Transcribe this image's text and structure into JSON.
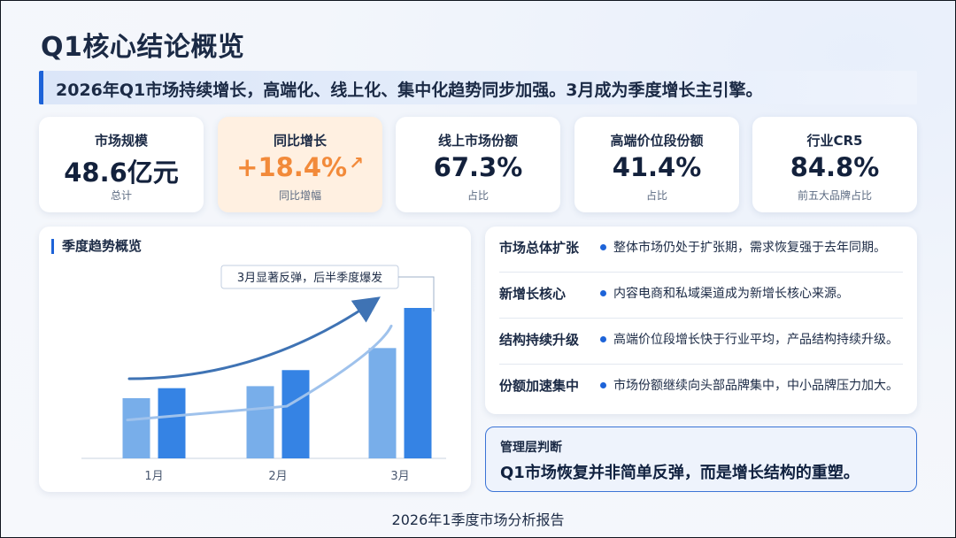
{
  "page": {
    "title": "Q1核心结论概览",
    "subtitle": "2026年Q1市场持续增长，高端化、线上化、集中化趋势同步加强。3月成为季度增长主引擎。",
    "footer": "2026年1季度市场分析报告"
  },
  "kpis": [
    {
      "label": "市场规模",
      "value": "48.6亿元",
      "note": "总计"
    },
    {
      "label": "同比增长",
      "value": "+18.4%",
      "note": "同比增幅",
      "trend_icon": "arrow-up-right-icon"
    },
    {
      "label": "线上市场份额",
      "value": "67.3%",
      "note": "占比"
    },
    {
      "label": "高端价位段份额",
      "value": "41.4%",
      "note": "占比"
    },
    {
      "label": "行业CR5",
      "value": "84.8%",
      "note": "前五大品牌占比"
    }
  ],
  "chart_panel": {
    "title": "季度趋势概览",
    "annotation": "3月显著反弹，后半季度爆发"
  },
  "chart_data": {
    "type": "bar",
    "categories": [
      "1月",
      "2月",
      "3月"
    ],
    "series": [
      {
        "values": [
          30,
          36,
          55
        ],
        "color": "#78aeea"
      },
      {
        "values": [
          35,
          44,
          75
        ],
        "color": "#3583e4"
      }
    ],
    "trend_line": [
      20,
      26,
      66
    ],
    "ylim": [
      0,
      90
    ],
    "grid": false,
    "legend": "none"
  },
  "insights": [
    {
      "title": "市场总体扩张",
      "text": "整体市场仍处于扩张期，需求恢复强于去年同期。"
    },
    {
      "title": "新增长核心",
      "text": "内容电商和私域渠道成为新增长核心来源。"
    },
    {
      "title": "结构持续升级",
      "text": "高端价位段增长快于行业平均，产品结构持续升级。"
    },
    {
      "title": "份额加速集中",
      "text": "市场份额继续向头部品牌集中，中小品牌压力加大。"
    }
  ],
  "judgement": {
    "label": "管理层判断",
    "text": "Q1市场恢复并非简单反弹，而是增长结构的重塑。"
  },
  "colors": {
    "accent": "#1d63d8",
    "highlight_bg": "#fff0e1",
    "highlight_text": "#f28a3a"
  }
}
